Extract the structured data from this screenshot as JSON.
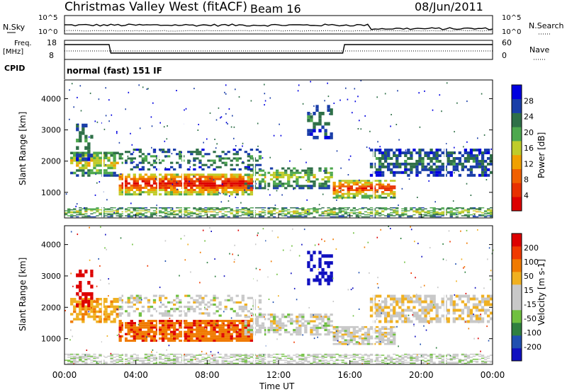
{
  "header": {
    "title": "Christmas Valley West (fitACF)",
    "beam": "Beam 16",
    "date": "08/Jun/2011"
  },
  "noise_panel": {
    "left_label": "N.Sky",
    "right_label": "N.Search",
    "ticks": [
      "10^5",
      "10^0"
    ]
  },
  "freq_panel": {
    "left_label": "Freq.",
    "left_unit": "[MHz]",
    "left_ticks": [
      "18",
      "8"
    ],
    "right_label": "Nave",
    "right_ticks": [
      "60",
      "0"
    ]
  },
  "cpid": {
    "label": "CPID",
    "mode": "normal (fast) 151 IF"
  },
  "colors": {
    "power": [
      "#0000e0",
      "#1a3ea8",
      "#2f7048",
      "#4ea84e",
      "#bfcc2a",
      "#f0a000",
      "#f06000",
      "#e83000",
      "#dd0000"
    ],
    "velocity": [
      "#dd0000",
      "#f03a00",
      "#f07a00",
      "#f0b020",
      "#c8c8c8",
      "#c8c8c8",
      "#70c040",
      "#2f8040",
      "#2050b0",
      "#1010c0"
    ]
  },
  "chart_data": [
    {
      "type": "heatmap",
      "name": "power",
      "ylabel": "Slant Range [km]",
      "yticks": [
        1000,
        2000,
        3000,
        4000
      ],
      "ylim": [
        180,
        4600
      ],
      "colorbar_label": "Power [dB]",
      "colorbar_ticks": [
        4,
        8,
        12,
        16,
        20,
        24,
        28
      ]
    },
    {
      "type": "heatmap",
      "name": "velocity",
      "ylabel": "Slant Range [km]",
      "yticks": [
        1000,
        2000,
        3000,
        4000
      ],
      "ylim": [
        180,
        4600
      ],
      "colorbar_label": "Velocity [m s-1]",
      "colorbar_ticks": [
        200,
        100,
        50,
        15,
        -15,
        -50,
        -100,
        -200
      ]
    }
  ],
  "time_axis": {
    "xlabel": "Time UT",
    "ticks": [
      "00:00",
      "04:00",
      "08:00",
      "12:00",
      "16:00",
      "20:00",
      "00:00"
    ]
  }
}
